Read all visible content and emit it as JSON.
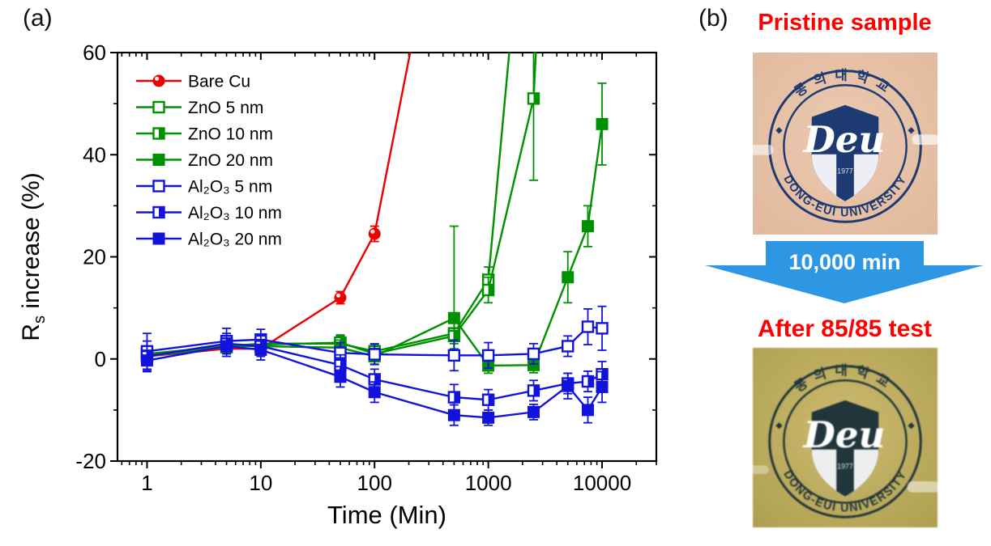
{
  "figure": {
    "panel_a_label": "(a)",
    "panel_b_label": "(b)"
  },
  "chart_data": {
    "type": "line",
    "title": "",
    "xlabel": "Time (Min)",
    "ylabel": "Rs increase (%)",
    "ylabel_parts": {
      "prefix": "R",
      "sub": "s",
      "suffix": " increase (%)"
    },
    "xscale": "log",
    "xlim": [
      0.55,
      30000
    ],
    "ylim": [
      -20,
      60
    ],
    "x_major_ticks": [
      1,
      10,
      100,
      1000,
      10000
    ],
    "y_major_ticks": [
      -20,
      0,
      20,
      40,
      60
    ],
    "y_minor_step": 10,
    "grid": false,
    "legend_position": "top-left",
    "series": [
      {
        "name": "Bare Cu",
        "color": "#ee0000",
        "marker": "circle-filled",
        "x": [
          1,
          5,
          10,
          50,
          100
        ],
        "y": [
          0.5,
          2,
          2,
          12,
          24.5
        ],
        "err_up": [
          0.8,
          0.8,
          0.8,
          1.2,
          1.5
        ],
        "err_down": [
          0.8,
          0.8,
          0.8,
          1.2,
          1.5
        ],
        "exit_top_x": 215
      },
      {
        "name": "ZnO 5 nm",
        "color": "#009100",
        "marker": "square-open",
        "x": [
          1,
          5,
          10,
          50,
          100,
          500,
          1000
        ],
        "y": [
          1,
          2.5,
          3,
          3,
          1.5,
          5,
          15.5
        ],
        "err_up": [
          1.5,
          1,
          1,
          1.5,
          1.5,
          3,
          2.5
        ],
        "err_down": [
          1.5,
          1,
          1,
          1.5,
          1.5,
          3,
          2.5
        ],
        "exit_top_x": 1560
      },
      {
        "name": "ZnO 10 nm",
        "color": "#009100",
        "marker": "square-half",
        "x": [
          1,
          5,
          10,
          50,
          100,
          500,
          1000,
          2500
        ],
        "y": [
          0.8,
          2.3,
          2.8,
          3.2,
          1,
          4.5,
          13.5,
          51
        ],
        "err_up": [
          1.5,
          1,
          1,
          1.5,
          1.5,
          3,
          2.5,
          16
        ],
        "err_down": [
          1.5,
          1,
          1,
          1.5,
          1.5,
          3,
          2.5,
          16
        ],
        "exit_top_x": 2650
      },
      {
        "name": "ZnO 20 nm",
        "color": "#009100",
        "marker": "square-filled",
        "x": [
          1,
          5,
          10,
          50,
          100,
          500,
          1000,
          2500,
          5000,
          7500,
          10000
        ],
        "y": [
          0.5,
          2.5,
          2.5,
          2.2,
          0.5,
          8,
          -1.3,
          -1.2,
          16,
          26,
          46
        ],
        "err_up": [
          1.5,
          1,
          1,
          1.5,
          1.5,
          18,
          1.5,
          1.5,
          5,
          4,
          8
        ],
        "err_down": [
          1.5,
          1,
          1,
          1.5,
          1.5,
          5,
          1.5,
          1.5,
          5,
          4,
          8
        ]
      },
      {
        "name": "Al₂O₃ 5 nm",
        "color": "#1212dd",
        "marker": "square-open",
        "x": [
          1,
          5,
          10,
          50,
          100,
          500,
          1000,
          2500,
          5000,
          7500,
          10000
        ],
        "y": [
          1.5,
          3.5,
          3.8,
          1.2,
          0.9,
          0.7,
          0.7,
          1,
          2.5,
          6.3,
          6
        ],
        "err_up": [
          3.5,
          2.5,
          2,
          2,
          2,
          3,
          2.5,
          2,
          2,
          3.5,
          4.3
        ],
        "err_down": [
          3.5,
          2.5,
          2,
          2,
          2,
          3,
          2.5,
          2,
          2,
          3.5,
          4.3
        ]
      },
      {
        "name": "Al₂O₃ 10 nm",
        "color": "#1212dd",
        "marker": "square-half",
        "x": [
          1,
          5,
          10,
          50,
          100,
          500,
          1000,
          2500,
          5000,
          7500,
          10000
        ],
        "y": [
          0.5,
          3,
          2.5,
          -1.2,
          -4,
          -7.5,
          -8,
          -6.2,
          -4.8,
          -4.4,
          -3
        ],
        "err_up": [
          3,
          2,
          2,
          2,
          2,
          2.5,
          2,
          2,
          2,
          2,
          2.5
        ],
        "err_down": [
          3,
          2,
          2,
          2,
          2,
          2.5,
          2,
          2,
          2,
          2,
          2.5
        ]
      },
      {
        "name": "Al₂O₃ 20 nm",
        "color": "#1212dd",
        "marker": "square-filled",
        "x": [
          1,
          5,
          10,
          50,
          100,
          500,
          1000,
          2500,
          5000,
          7500,
          10000
        ],
        "y": [
          -0.3,
          2.5,
          1.8,
          -3.5,
          -6.5,
          -11,
          -11.5,
          -10.4,
          -5.3,
          -10,
          -5.5
        ],
        "err_up": [
          2,
          2,
          2,
          2,
          2,
          2,
          1.5,
          1.5,
          2.5,
          2.5,
          3
        ],
        "err_down": [
          2,
          2,
          2,
          2,
          2,
          2,
          1.5,
          1.5,
          2.5,
          2.5,
          3
        ]
      }
    ]
  },
  "panel_b": {
    "title_top": "Pristine sample",
    "arrow_label": "10,000 min",
    "title_bottom": "After 85/85 test",
    "seal": {
      "korean_text": "동의대학교",
      "english_text": "DONG-EUI UNIVERSITY",
      "emblem_text": "Deu",
      "year": "1977"
    },
    "colors": {
      "title_red": "#ff0000",
      "arrow_blue": "#2e97e3",
      "pristine_bg": "#ecc9b0",
      "pristine_bg_edge": "#e0b99c",
      "pristine_seal": "#1d3a72",
      "aged_bg": "#cdbb6d",
      "aged_bg_edge": "#af9e4a",
      "aged_seal": "#20363a"
    }
  }
}
